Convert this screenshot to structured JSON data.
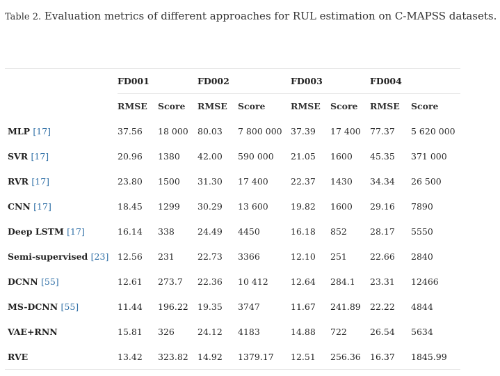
{
  "caption": {
    "label": "Table 2.",
    "text": "Evaluation metrics of different approaches for RUL estimation on C-MAPSS datasets."
  },
  "table": {
    "groups": [
      "FD001",
      "FD002",
      "FD003",
      "FD004"
    ],
    "metrics": [
      "RMSE",
      "Score"
    ],
    "rows": [
      {
        "method": "MLP",
        "ref": "[17]",
        "values": [
          "37.56",
          "18 000",
          "80.03",
          "7 800 000",
          "37.39",
          "17 400",
          "77.37",
          "5 620 000"
        ],
        "bold": []
      },
      {
        "method": "SVR",
        "ref": "[17]",
        "values": [
          "20.96",
          "1380",
          "42.00",
          "590 000",
          "21.05",
          "1600",
          "45.35",
          "371 000"
        ],
        "bold": []
      },
      {
        "method": "RVR",
        "ref": "[17]",
        "values": [
          "23.80",
          "1500",
          "31.30",
          "17 400",
          "22.37",
          "1430",
          "34.34",
          "26 500"
        ],
        "bold": []
      },
      {
        "method": "CNN",
        "ref": "[17]",
        "values": [
          "18.45",
          "1299",
          "30.29",
          "13 600",
          "19.82",
          "1600",
          "29.16",
          "7890"
        ],
        "bold": []
      },
      {
        "method": "Deep LSTM",
        "ref": "[17]",
        "values": [
          "16.14",
          "338",
          "24.49",
          "4450",
          "16.18",
          "852",
          "28.17",
          "5550"
        ],
        "bold": []
      },
      {
        "method": "Semi-supervised",
        "ref": "[23]",
        "values": [
          "12.56",
          "231",
          "22.73",
          "3366",
          "12.10",
          "251",
          "22.66",
          "2840"
        ],
        "bold": []
      },
      {
        "method": "DCNN",
        "ref": "[55]",
        "values": [
          "12.61",
          "273.7",
          "22.36",
          "10 412",
          "12.64",
          "284.1",
          "23.31",
          "12466"
        ],
        "bold": []
      },
      {
        "method": "MS-DCNN",
        "ref": "[55]",
        "values": [
          "11.44",
          "196.22",
          "19.35",
          "3747",
          "11.67",
          "241.89",
          "22.22",
          "4844"
        ],
        "bold": [
          0,
          1,
          4,
          5
        ]
      },
      {
        "method": "VAE+RNN",
        "ref": "",
        "values": [
          "15.81",
          "326",
          "24.12",
          "4183",
          "14.88",
          "722",
          "26.54",
          "5634"
        ],
        "bold": []
      },
      {
        "method": "RVE",
        "ref": "",
        "values": [
          "13.42",
          "323.82",
          "14.92",
          "1379.17",
          "12.51",
          "256.36",
          "16.37",
          "1845.99"
        ],
        "bold": [
          2,
          3,
          6,
          7
        ]
      }
    ]
  }
}
